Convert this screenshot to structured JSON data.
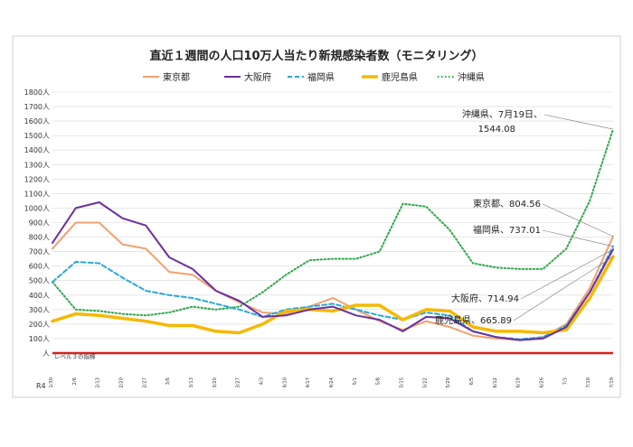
{
  "chart_data": {
    "type": "line",
    "title": "直近１週間の人口10万人当たり新規感染者数（モニタリング）",
    "ylabel": "",
    "xlabel": "",
    "ylim": [
      0,
      1800
    ],
    "y_unit": "人",
    "yticks": [
      0,
      100,
      200,
      300,
      400,
      500,
      600,
      700,
      800,
      900,
      1000,
      1100,
      1200,
      1300,
      1400,
      1500,
      1600,
      1700,
      1800
    ],
    "era_label": "R4",
    "threshold": {
      "label": "レベル３の指標",
      "value": 0,
      "color": "#d62020"
    },
    "x": [
      "1/30",
      "2/6",
      "2/13",
      "2/20",
      "2/27",
      "3/6",
      "3/13",
      "3/20",
      "3/27",
      "4/3",
      "4/10",
      "4/17",
      "4/24",
      "5/1",
      "5/8",
      "5/15",
      "5/22",
      "5/29",
      "6/5",
      "6/12",
      "6/19",
      "6/26",
      "7/3",
      "7/10",
      "7/19"
    ],
    "series": [
      {
        "name": "東京都",
        "color": "#f0a070",
        "style": "solid",
        "values": [
          720,
          900,
          900,
          750,
          720,
          560,
          540,
          430,
          350,
          280,
          270,
          320,
          380,
          300,
          220,
          160,
          220,
          180,
          120,
          100,
          90,
          110,
          200,
          450,
          805
        ]
      },
      {
        "name": "大阪府",
        "color": "#6a2fa0",
        "style": "solid",
        "values": [
          760,
          1000,
          1040,
          930,
          880,
          660,
          580,
          430,
          360,
          250,
          260,
          300,
          320,
          260,
          230,
          150,
          250,
          240,
          150,
          110,
          90,
          100,
          180,
          420,
          715
        ]
      },
      {
        "name": "福岡県",
        "color": "#2aa8d8",
        "style": "dashed",
        "values": [
          490,
          630,
          620,
          520,
          430,
          400,
          380,
          340,
          300,
          250,
          300,
          320,
          340,
          300,
          260,
          230,
          280,
          260,
          150,
          110,
          95,
          110,
          190,
          420,
          737
        ]
      },
      {
        "name": "鹿児島県",
        "color": "#f5b800",
        "style": "solid",
        "values": [
          220,
          270,
          260,
          240,
          220,
          190,
          190,
          150,
          140,
          200,
          290,
          300,
          290,
          330,
          330,
          230,
          300,
          290,
          180,
          150,
          150,
          140,
          160,
          380,
          666
        ]
      },
      {
        "name": "沖縄県",
        "color": "#2fa84a",
        "style": "dotted",
        "values": [
          490,
          300,
          290,
          270,
          260,
          280,
          320,
          300,
          320,
          420,
          540,
          640,
          650,
          650,
          700,
          1030,
          1010,
          850,
          620,
          590,
          580,
          580,
          720,
          1050,
          1544
        ]
      }
    ],
    "annotations": [
      {
        "series": "沖縄県",
        "label": "沖縄県、7月19日、",
        "value_label": "1544.08"
      },
      {
        "series": "東京都",
        "label": "東京都、804.56"
      },
      {
        "series": "福岡県",
        "label": "福岡県、737.01"
      },
      {
        "series": "大阪府",
        "label": "大阪府、714.94"
      },
      {
        "series": "鹿児島県",
        "label": "鹿児島県、665.89"
      }
    ]
  }
}
